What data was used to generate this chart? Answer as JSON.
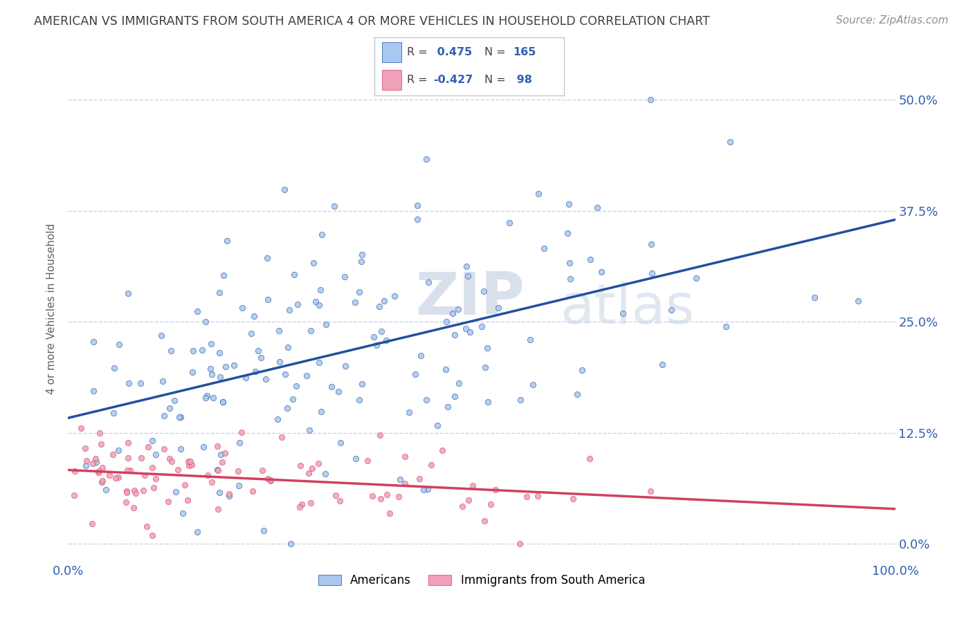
{
  "title": "AMERICAN VS IMMIGRANTS FROM SOUTH AMERICA 4 OR MORE VEHICLES IN HOUSEHOLD CORRELATION CHART",
  "source": "Source: ZipAtlas.com",
  "ylabel": "4 or more Vehicles in Household",
  "xlim": [
    0.0,
    1.0
  ],
  "ylim": [
    -0.02,
    0.55
  ],
  "yticks": [
    0.0,
    0.125,
    0.25,
    0.375,
    0.5
  ],
  "ytick_labels": [
    "0.0%",
    "12.5%",
    "25.0%",
    "37.5%",
    "50.0%"
  ],
  "xticks": [
    0.0,
    1.0
  ],
  "xtick_labels": [
    "0.0%",
    "100.0%"
  ],
  "blue_R": 0.475,
  "blue_N": 165,
  "pink_R": -0.427,
  "pink_N": 98,
  "blue_color": "#a8c8f0",
  "pink_color": "#f0a0b8",
  "blue_line_color": "#2050a0",
  "pink_line_color": "#d04060",
  "watermark_zip": "ZIP",
  "watermark_atlas": "atlas",
  "legend_labels": [
    "Americans",
    "Immigrants from South America"
  ],
  "background_color": "#ffffff",
  "grid_color": "#c8d4e8",
  "title_color": "#404040",
  "axis_label_color": "#606060",
  "tick_label_color": "#3060b0",
  "right_tick_color": "#3060b0",
  "source_color": "#909090"
}
